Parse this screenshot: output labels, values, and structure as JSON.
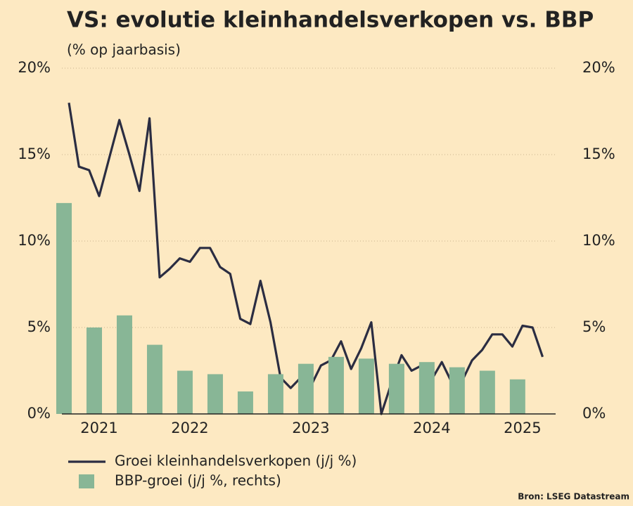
{
  "chart_data": {
    "type": "line-bar",
    "title": "VS: evolutie kleinhandelsverkopen vs. BBP",
    "subtitle": "(% op jaarbasis)",
    "source": "Bron: LSEG Datastream",
    "categories": [
      null,
      null,
      null,
      "2021",
      null,
      null,
      null,
      null,
      null,
      null,
      null,
      null,
      "2022",
      null,
      null,
      null,
      null,
      null,
      null,
      null,
      null,
      null,
      null,
      null,
      "2023",
      null,
      null,
      null,
      null,
      null,
      null,
      null,
      null,
      null,
      null,
      null,
      "2024",
      null,
      null,
      null,
      null,
      null,
      null,
      null,
      null,
      "2025",
      null,
      null
    ],
    "series": [
      {
        "name": "Groei kleinhandelsverkopen (j/j %)",
        "color": "#2b2d42",
        "kind": "line",
        "values": [
          18.0,
          14.3,
          14.1,
          12.6,
          14.8,
          17.0,
          15.0,
          12.9,
          17.1,
          7.9,
          8.4,
          9.0,
          8.8,
          9.6,
          9.6,
          8.5,
          8.1,
          5.5,
          5.2,
          7.7,
          5.3,
          2.1,
          1.5,
          2.1,
          1.6,
          2.8,
          3.1,
          4.2,
          2.6,
          3.8,
          5.3,
          0.0,
          1.8,
          3.4,
          2.5,
          2.8,
          2.0,
          3.0,
          1.8,
          1.9,
          3.1,
          3.7,
          4.6,
          4.6,
          3.9,
          5.1,
          5.0,
          3.3
        ]
      },
      {
        "name": "BBP-groei (j/j %, rechts)",
        "color": "#88b696",
        "kind": "bar",
        "axis": "y2",
        "values": [
          12.2,
          null,
          null,
          5.0,
          null,
          null,
          5.7,
          null,
          null,
          4.0,
          null,
          null,
          2.5,
          null,
          null,
          2.3,
          null,
          null,
          1.3,
          null,
          null,
          2.3,
          null,
          null,
          2.9,
          null,
          null,
          3.3,
          null,
          null,
          3.2,
          null,
          null,
          2.9,
          null,
          null,
          3.0,
          null,
          null,
          2.7,
          null,
          null,
          2.5,
          null,
          null,
          2.0,
          null,
          null
        ]
      }
    ],
    "ylim": [
      0,
      20
    ],
    "yticks": [
      {
        "value": 0,
        "label": "0%"
      },
      {
        "value": 5,
        "label": "5%"
      },
      {
        "value": 10,
        "label": "10%"
      },
      {
        "value": 15,
        "label": "15%"
      },
      {
        "value": 20,
        "label": "20%"
      }
    ],
    "y2lim": [
      0,
      20
    ],
    "y2ticks": [
      {
        "value": 0,
        "label": "0%"
      },
      {
        "value": 5,
        "label": "5%"
      },
      {
        "value": 10,
        "label": "10%"
      },
      {
        "value": 15,
        "label": "15%"
      },
      {
        "value": 20,
        "label": "20%"
      }
    ],
    "grid": true
  }
}
